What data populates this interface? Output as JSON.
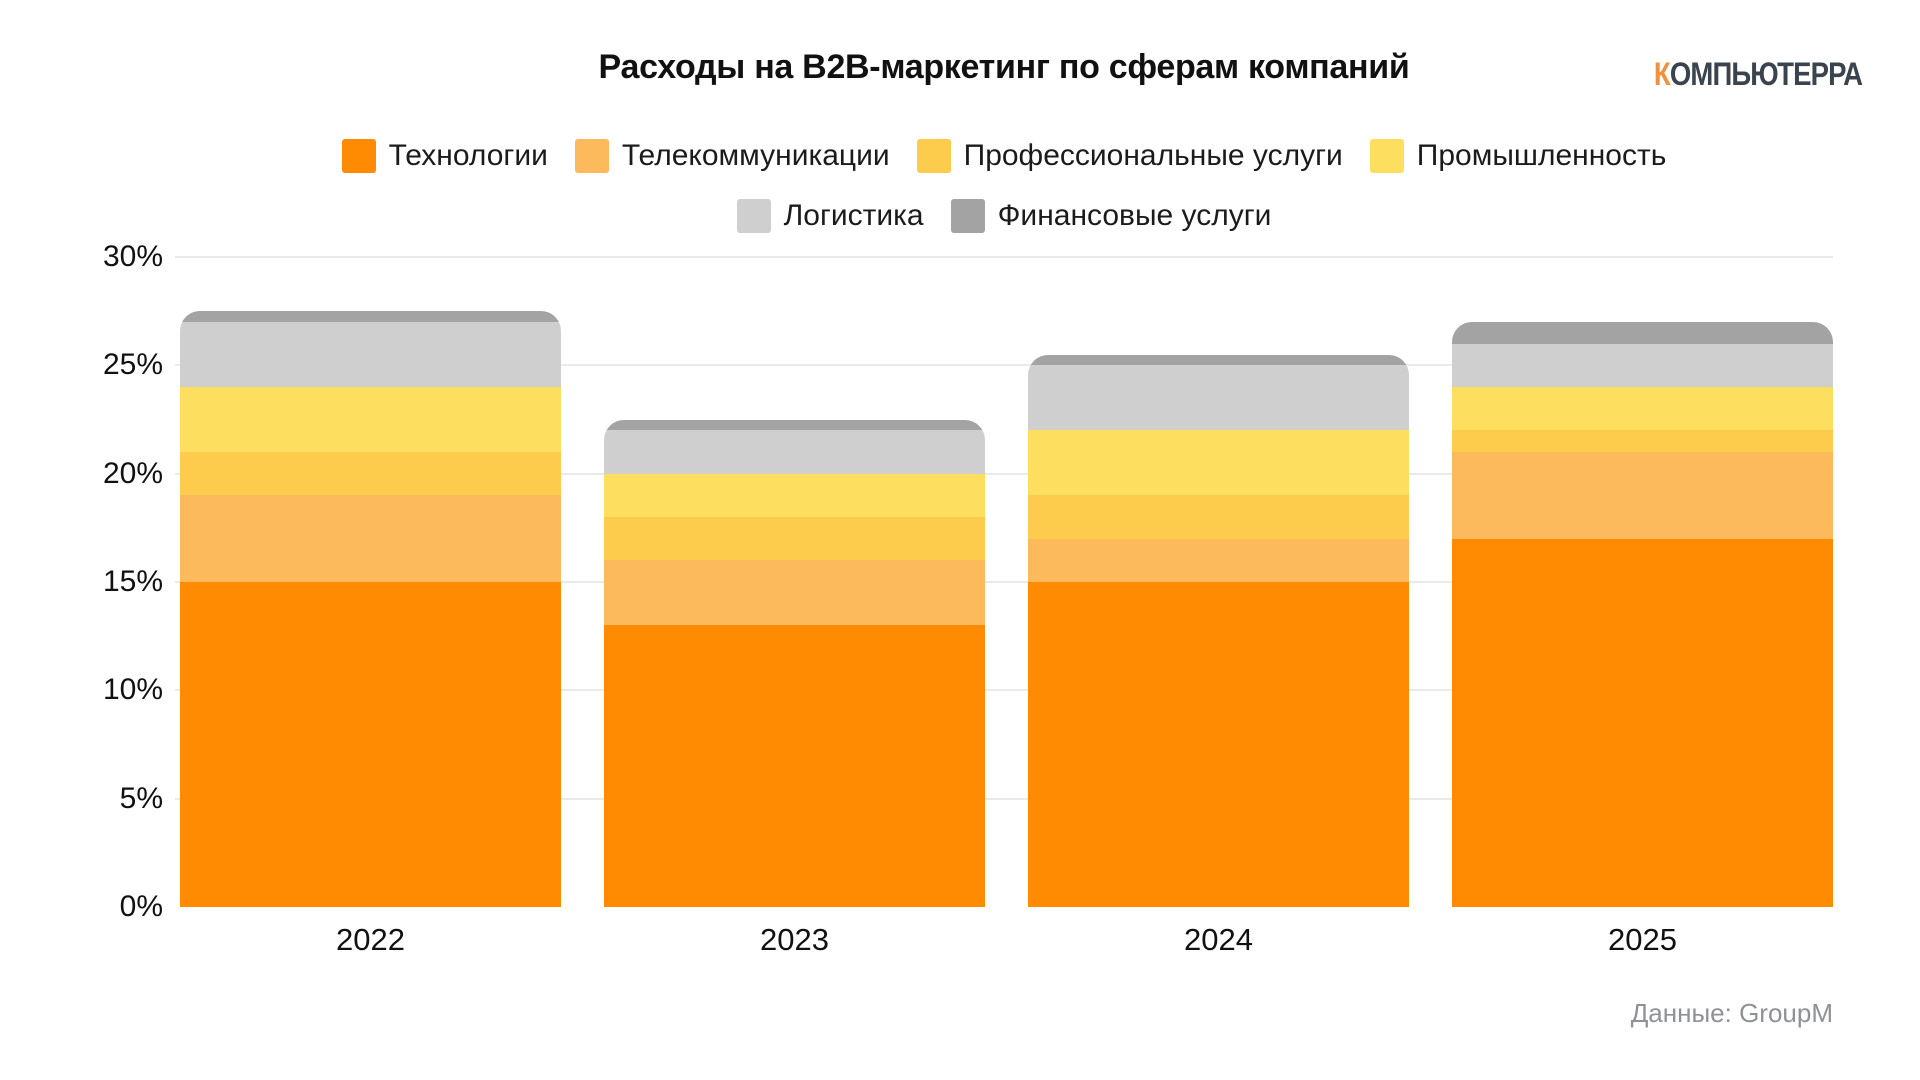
{
  "title": "Расходы на B2B-маркетинг по сферам компаний",
  "logo": {
    "first_letter": "К",
    "rest": "ОМПЬЮТЕРРА",
    "first_letter_color": "#ef9140",
    "rest_color": "#3a444e"
  },
  "source": "Данные: GroupM",
  "chart_data": {
    "type": "bar",
    "stacked": true,
    "title": "Расходы на B2B-маркетинг по сферам компаний",
    "xlabel": "",
    "ylabel": "",
    "categories": [
      "2022",
      "2023",
      "2024",
      "2025"
    ],
    "series": [
      {
        "name": "Технологии",
        "color": "#fe8b01",
        "values": [
          15,
          13,
          15,
          17
        ]
      },
      {
        "name": "Телекоммуникации",
        "color": "#fcba5c",
        "values": [
          4,
          3,
          2,
          4
        ]
      },
      {
        "name": "Профессиональные услуги",
        "color": "#fecc4d",
        "values": [
          2,
          2,
          2,
          1
        ]
      },
      {
        "name": "Промышленность",
        "color": "#fede5f",
        "values": [
          3,
          2,
          3,
          2
        ]
      },
      {
        "name": "Логистика",
        "color": "#d0cfd0",
        "values": [
          3,
          2,
          3,
          2
        ]
      },
      {
        "name": "Финансовые услуги",
        "color": "#a4a3a4",
        "values": [
          0.5,
          0.5,
          0.5,
          1
        ]
      }
    ],
    "totals": [
      27.5,
      22.5,
      25.5,
      27
    ],
    "ylim": [
      0,
      30
    ],
    "yticks": [
      "30%",
      "25%",
      "20%",
      "15%",
      "10%",
      "5%",
      "0%"
    ],
    "grid": true,
    "legend_position": "top",
    "legend_rows": [
      [
        "Технологии",
        "Телекоммуникации",
        "Профессиональные услуги",
        "Промышленность"
      ],
      [
        "Логистика",
        "Финансовые услуги"
      ]
    ]
  }
}
